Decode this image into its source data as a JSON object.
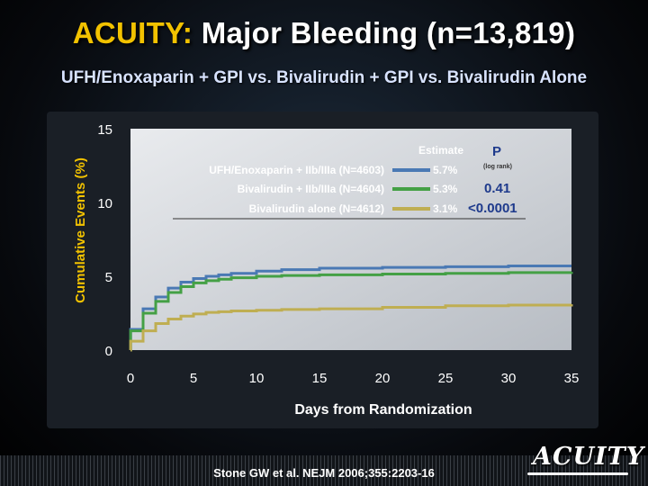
{
  "header": {
    "title_prefix": "ACUITY:",
    "title_rest": "Major Bleeding (n=13,819)",
    "subtitle": "UFH/Enoxaparin + GPI vs. Bivalirudin + GPI vs. Bivalirudin Alone"
  },
  "footer": {
    "citation": "Stone GW et al. NEJM 2006;355:2203-16",
    "logo_text": "ACUITY"
  },
  "colors": {
    "ufh": "#4a79b4",
    "biv_gpi": "#44a045",
    "biv_alone": "#bfae52",
    "p_value": "#1e3a8c",
    "axis_text": "#ffffff",
    "ylabel": "#f2c200",
    "xlabel": "#ffffff"
  },
  "chart_data": {
    "type": "line",
    "title": "ACUITY: Major Bleeding (n=13,819)",
    "xlabel": "Days from Randomization",
    "ylabel": "Cumulative Events (%)",
    "xlim": [
      0,
      35
    ],
    "ylim": [
      0,
      15
    ],
    "xticks": [
      0,
      5,
      10,
      15,
      20,
      25,
      30,
      35
    ],
    "yticks": [
      0,
      5,
      10,
      15
    ],
    "legend": {
      "estimate_header": "Estimate",
      "p_header": "P",
      "p_sub": "(log rank)"
    },
    "p_values": [
      "0.41",
      "<0.0001"
    ],
    "series": [
      {
        "name": "UFH/Enoxaparin + IIb/IIIa (N=4603)",
        "estimate": "5.7%",
        "color": "#4a79b4",
        "x": [
          0,
          0.01,
          1,
          2,
          3,
          4,
          5,
          6,
          7,
          8,
          10,
          12,
          15,
          20,
          25,
          30,
          35
        ],
        "y": [
          0,
          1.4,
          2.8,
          3.6,
          4.2,
          4.6,
          4.85,
          5.0,
          5.1,
          5.2,
          5.35,
          5.45,
          5.55,
          5.6,
          5.65,
          5.7,
          5.7
        ]
      },
      {
        "name": "Bivalirudin + IIb/IIIa (N=4604)",
        "estimate": "5.3%",
        "color": "#44a045",
        "x": [
          0,
          0.01,
          1,
          2,
          3,
          4,
          5,
          6,
          7,
          8,
          10,
          12,
          15,
          20,
          25,
          30,
          35
        ],
        "y": [
          0,
          1.3,
          2.5,
          3.3,
          3.9,
          4.3,
          4.55,
          4.7,
          4.8,
          4.9,
          5.0,
          5.05,
          5.1,
          5.15,
          5.2,
          5.25,
          5.3
        ]
      },
      {
        "name": "Bivalirudin alone (N=4612)",
        "estimate": "3.1%",
        "color": "#bfae52",
        "x": [
          0,
          0.01,
          1,
          2,
          3,
          4,
          5,
          6,
          7,
          8,
          10,
          12,
          15,
          20,
          25,
          30,
          35
        ],
        "y": [
          0,
          0.6,
          1.3,
          1.8,
          2.1,
          2.3,
          2.45,
          2.55,
          2.6,
          2.65,
          2.7,
          2.75,
          2.8,
          2.9,
          3.0,
          3.05,
          3.1
        ]
      }
    ]
  }
}
